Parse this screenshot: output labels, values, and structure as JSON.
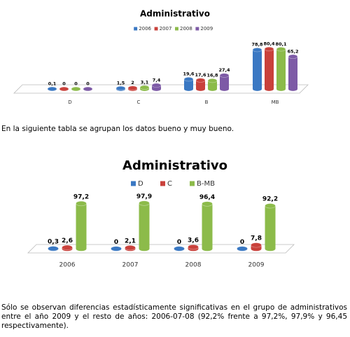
{
  "chart_data": [
    {
      "type": "bar",
      "title": "Administrativo",
      "categories": [
        "D",
        "C",
        "B",
        "MB"
      ],
      "series": [
        {
          "name": "2006",
          "color": "#3a78c3",
          "values": [
            0.1,
            1.5,
            19.6,
            78.8
          ],
          "value_labels": [
            "0,1",
            "1,5",
            "19,6",
            "78,8"
          ]
        },
        {
          "name": "2007",
          "color": "#c9413b",
          "values": [
            0,
            2,
            17.6,
            80.4
          ],
          "value_labels": [
            "0",
            "2",
            "17,6",
            "80,4"
          ]
        },
        {
          "name": "2008",
          "color": "#8cbb4a",
          "values": [
            0,
            3.1,
            16.8,
            80.1
          ],
          "value_labels": [
            "0",
            "3,1",
            "16,8",
            "80,1"
          ]
        },
        {
          "name": "2009",
          "color": "#7d5aa6",
          "values": [
            0,
            7.4,
            27.4,
            65.2
          ],
          "value_labels": [
            "0",
            "7,4",
            "27,4",
            "65,2"
          ]
        }
      ]
    },
    {
      "type": "bar",
      "title": "Administrativo",
      "categories": [
        "2006",
        "2007",
        "2008",
        "2009"
      ],
      "series": [
        {
          "name": "D",
          "color": "#3a78c3",
          "values": [
            0.3,
            0,
            0,
            0
          ],
          "value_labels": [
            "0,3",
            "0",
            "0",
            "0"
          ]
        },
        {
          "name": "C",
          "color": "#c9413b",
          "values": [
            2.6,
            2.1,
            3.6,
            7.8
          ],
          "value_labels": [
            "2,6",
            "2,1",
            "3,6",
            "7,8"
          ]
        },
        {
          "name": "B-MB",
          "color": "#8cbb4a",
          "values": [
            97.2,
            97.9,
            96.4,
            92.2
          ],
          "value_labels": [
            "97,2",
            "97,9",
            "96,4",
            "92,2"
          ]
        }
      ]
    }
  ],
  "text": {
    "intro": "En la siguiente tabla se agrupan los datos bueno y muy bueno.",
    "conclusion": "Sólo se observan diferencias estadísticamente significativas en el grupo de administrativos entre el año 2009 y el resto de años: 2006-07-08 (92,2% frente a 97,2%, 97,9% y 96,45 respectivamente)."
  }
}
